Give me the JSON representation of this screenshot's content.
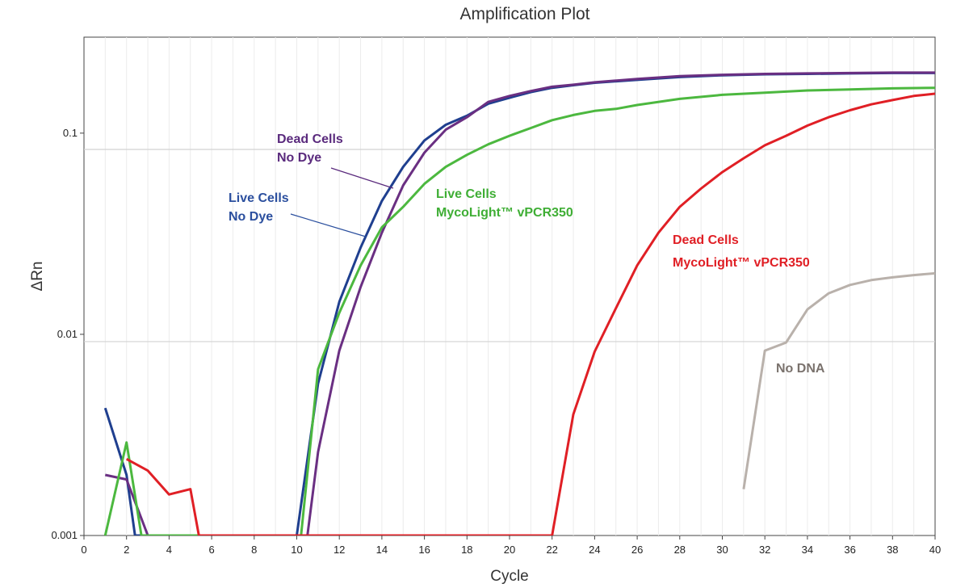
{
  "chart_data": {
    "type": "line",
    "title": "Amplification Plot",
    "xlabel": "Cycle",
    "ylabel": "ΔRn",
    "xlim": [
      0,
      40
    ],
    "ylim": [
      0.001,
      0.3
    ],
    "yscale": "log",
    "x_ticks": [
      0,
      2,
      4,
      6,
      8,
      10,
      12,
      14,
      16,
      18,
      20,
      22,
      24,
      26,
      28,
      30,
      32,
      34,
      36,
      38,
      40
    ],
    "y_ticks": [
      {
        "value": 0.001,
        "label": "0.001"
      },
      {
        "value": 0.01,
        "label": "0.01"
      },
      {
        "value": 0.1,
        "label": "0.1"
      }
    ],
    "grid": "vertical gridlines at each cycle",
    "threshold_lines": [
      0.0092,
      0.083
    ],
    "series": [
      {
        "name": "Live Cells No Dye",
        "color": "#1f3f8f",
        "points": [
          [
            1,
            0.0043
          ],
          [
            2,
            0.002
          ],
          [
            2.4,
            0.001
          ],
          [
            10,
            0.001
          ],
          [
            11,
            0.0057
          ],
          [
            12,
            0.0145
          ],
          [
            13,
            0.027
          ],
          [
            14,
            0.046
          ],
          [
            15,
            0.068
          ],
          [
            16,
            0.092
          ],
          [
            17,
            0.11
          ],
          [
            18,
            0.122
          ],
          [
            19,
            0.14
          ],
          [
            20,
            0.15
          ],
          [
            21,
            0.16
          ],
          [
            22,
            0.168
          ],
          [
            23,
            0.173
          ],
          [
            24,
            0.178
          ],
          [
            26,
            0.184
          ],
          [
            28,
            0.19
          ],
          [
            30,
            0.194
          ],
          [
            32,
            0.196
          ],
          [
            34,
            0.197
          ],
          [
            36,
            0.198
          ],
          [
            38,
            0.199
          ],
          [
            40,
            0.199
          ]
        ]
      },
      {
        "name": "Dead Cells No Dye",
        "color": "#6a2f82",
        "points": [
          [
            1,
            0.002
          ],
          [
            2,
            0.0019
          ],
          [
            3,
            0.001
          ],
          [
            10.5,
            0.001
          ],
          [
            11,
            0.0026
          ],
          [
            12,
            0.0083
          ],
          [
            13,
            0.0172
          ],
          [
            14,
            0.032
          ],
          [
            15,
            0.055
          ],
          [
            16,
            0.08
          ],
          [
            17,
            0.104
          ],
          [
            18,
            0.12
          ],
          [
            19,
            0.143
          ],
          [
            20,
            0.153
          ],
          [
            21,
            0.162
          ],
          [
            22,
            0.17
          ],
          [
            23,
            0.174
          ],
          [
            24,
            0.179
          ],
          [
            26,
            0.186
          ],
          [
            28,
            0.192
          ],
          [
            30,
            0.195
          ],
          [
            32,
            0.197
          ],
          [
            34,
            0.198
          ],
          [
            36,
            0.199
          ],
          [
            38,
            0.2
          ],
          [
            40,
            0.2
          ]
        ]
      },
      {
        "name": "Live Cells MycoLight™ vPCR350",
        "color": "#4cb83f",
        "points": [
          [
            1,
            0.001
          ],
          [
            2,
            0.0029
          ],
          [
            2.7,
            0.001
          ],
          [
            10.2,
            0.001
          ],
          [
            11,
            0.0067
          ],
          [
            12,
            0.0128
          ],
          [
            13,
            0.022
          ],
          [
            14,
            0.034
          ],
          [
            15,
            0.043
          ],
          [
            16,
            0.056
          ],
          [
            17,
            0.068
          ],
          [
            18,
            0.078
          ],
          [
            19,
            0.088
          ],
          [
            20,
            0.097
          ],
          [
            21,
            0.106
          ],
          [
            22,
            0.116
          ],
          [
            23,
            0.123
          ],
          [
            24,
            0.129
          ],
          [
            25,
            0.132
          ],
          [
            26,
            0.138
          ],
          [
            28,
            0.148
          ],
          [
            30,
            0.155
          ],
          [
            32,
            0.159
          ],
          [
            34,
            0.163
          ],
          [
            36,
            0.165
          ],
          [
            38,
            0.167
          ],
          [
            40,
            0.168
          ]
        ]
      },
      {
        "name": "Dead Cells MycoLight™ vPCR350",
        "color": "#e01f25",
        "points": [
          [
            2,
            0.0024
          ],
          [
            3,
            0.0021
          ],
          [
            4,
            0.0016
          ],
          [
            5,
            0.0017
          ],
          [
            5.4,
            0.001
          ],
          [
            22,
            0.001
          ],
          [
            23,
            0.004
          ],
          [
            24,
            0.0082
          ],
          [
            25,
            0.0135
          ],
          [
            26,
            0.022
          ],
          [
            27,
            0.032
          ],
          [
            28,
            0.043
          ],
          [
            29,
            0.053
          ],
          [
            30,
            0.064
          ],
          [
            31,
            0.075
          ],
          [
            32,
            0.087
          ],
          [
            33,
            0.097
          ],
          [
            34,
            0.109
          ],
          [
            35,
            0.12
          ],
          [
            36,
            0.13
          ],
          [
            37,
            0.139
          ],
          [
            38,
            0.146
          ],
          [
            39,
            0.153
          ],
          [
            40,
            0.157
          ]
        ]
      },
      {
        "name": "No DNA",
        "color": "#b9b1ab",
        "points": [
          [
            31,
            0.0017
          ],
          [
            32,
            0.0083
          ],
          [
            33,
            0.0091
          ],
          [
            34,
            0.0133
          ],
          [
            35,
            0.016
          ],
          [
            36,
            0.0176
          ],
          [
            37,
            0.0186
          ],
          [
            38,
            0.0192
          ],
          [
            39,
            0.0197
          ],
          [
            40,
            0.0201
          ]
        ]
      }
    ],
    "annotations": [
      {
        "lines": [
          "Dead Cells",
          "No Dye"
        ],
        "color": "#5a2a7d",
        "series": 1
      },
      {
        "lines": [
          "Live Cells",
          "No Dye"
        ],
        "color": "#2b4f9e",
        "series": 0
      },
      {
        "lines": [
          "Live Cells",
          "MycoLight™ vPCR350"
        ],
        "color": "#3fae35",
        "series": 2
      },
      {
        "lines": [
          "Dead Cells",
          "MycoLight™ vPCR350"
        ],
        "color": "#e01f25",
        "series": 3
      },
      {
        "lines": [
          "No DNA"
        ],
        "color": "#7a726d",
        "series": 4
      }
    ]
  }
}
